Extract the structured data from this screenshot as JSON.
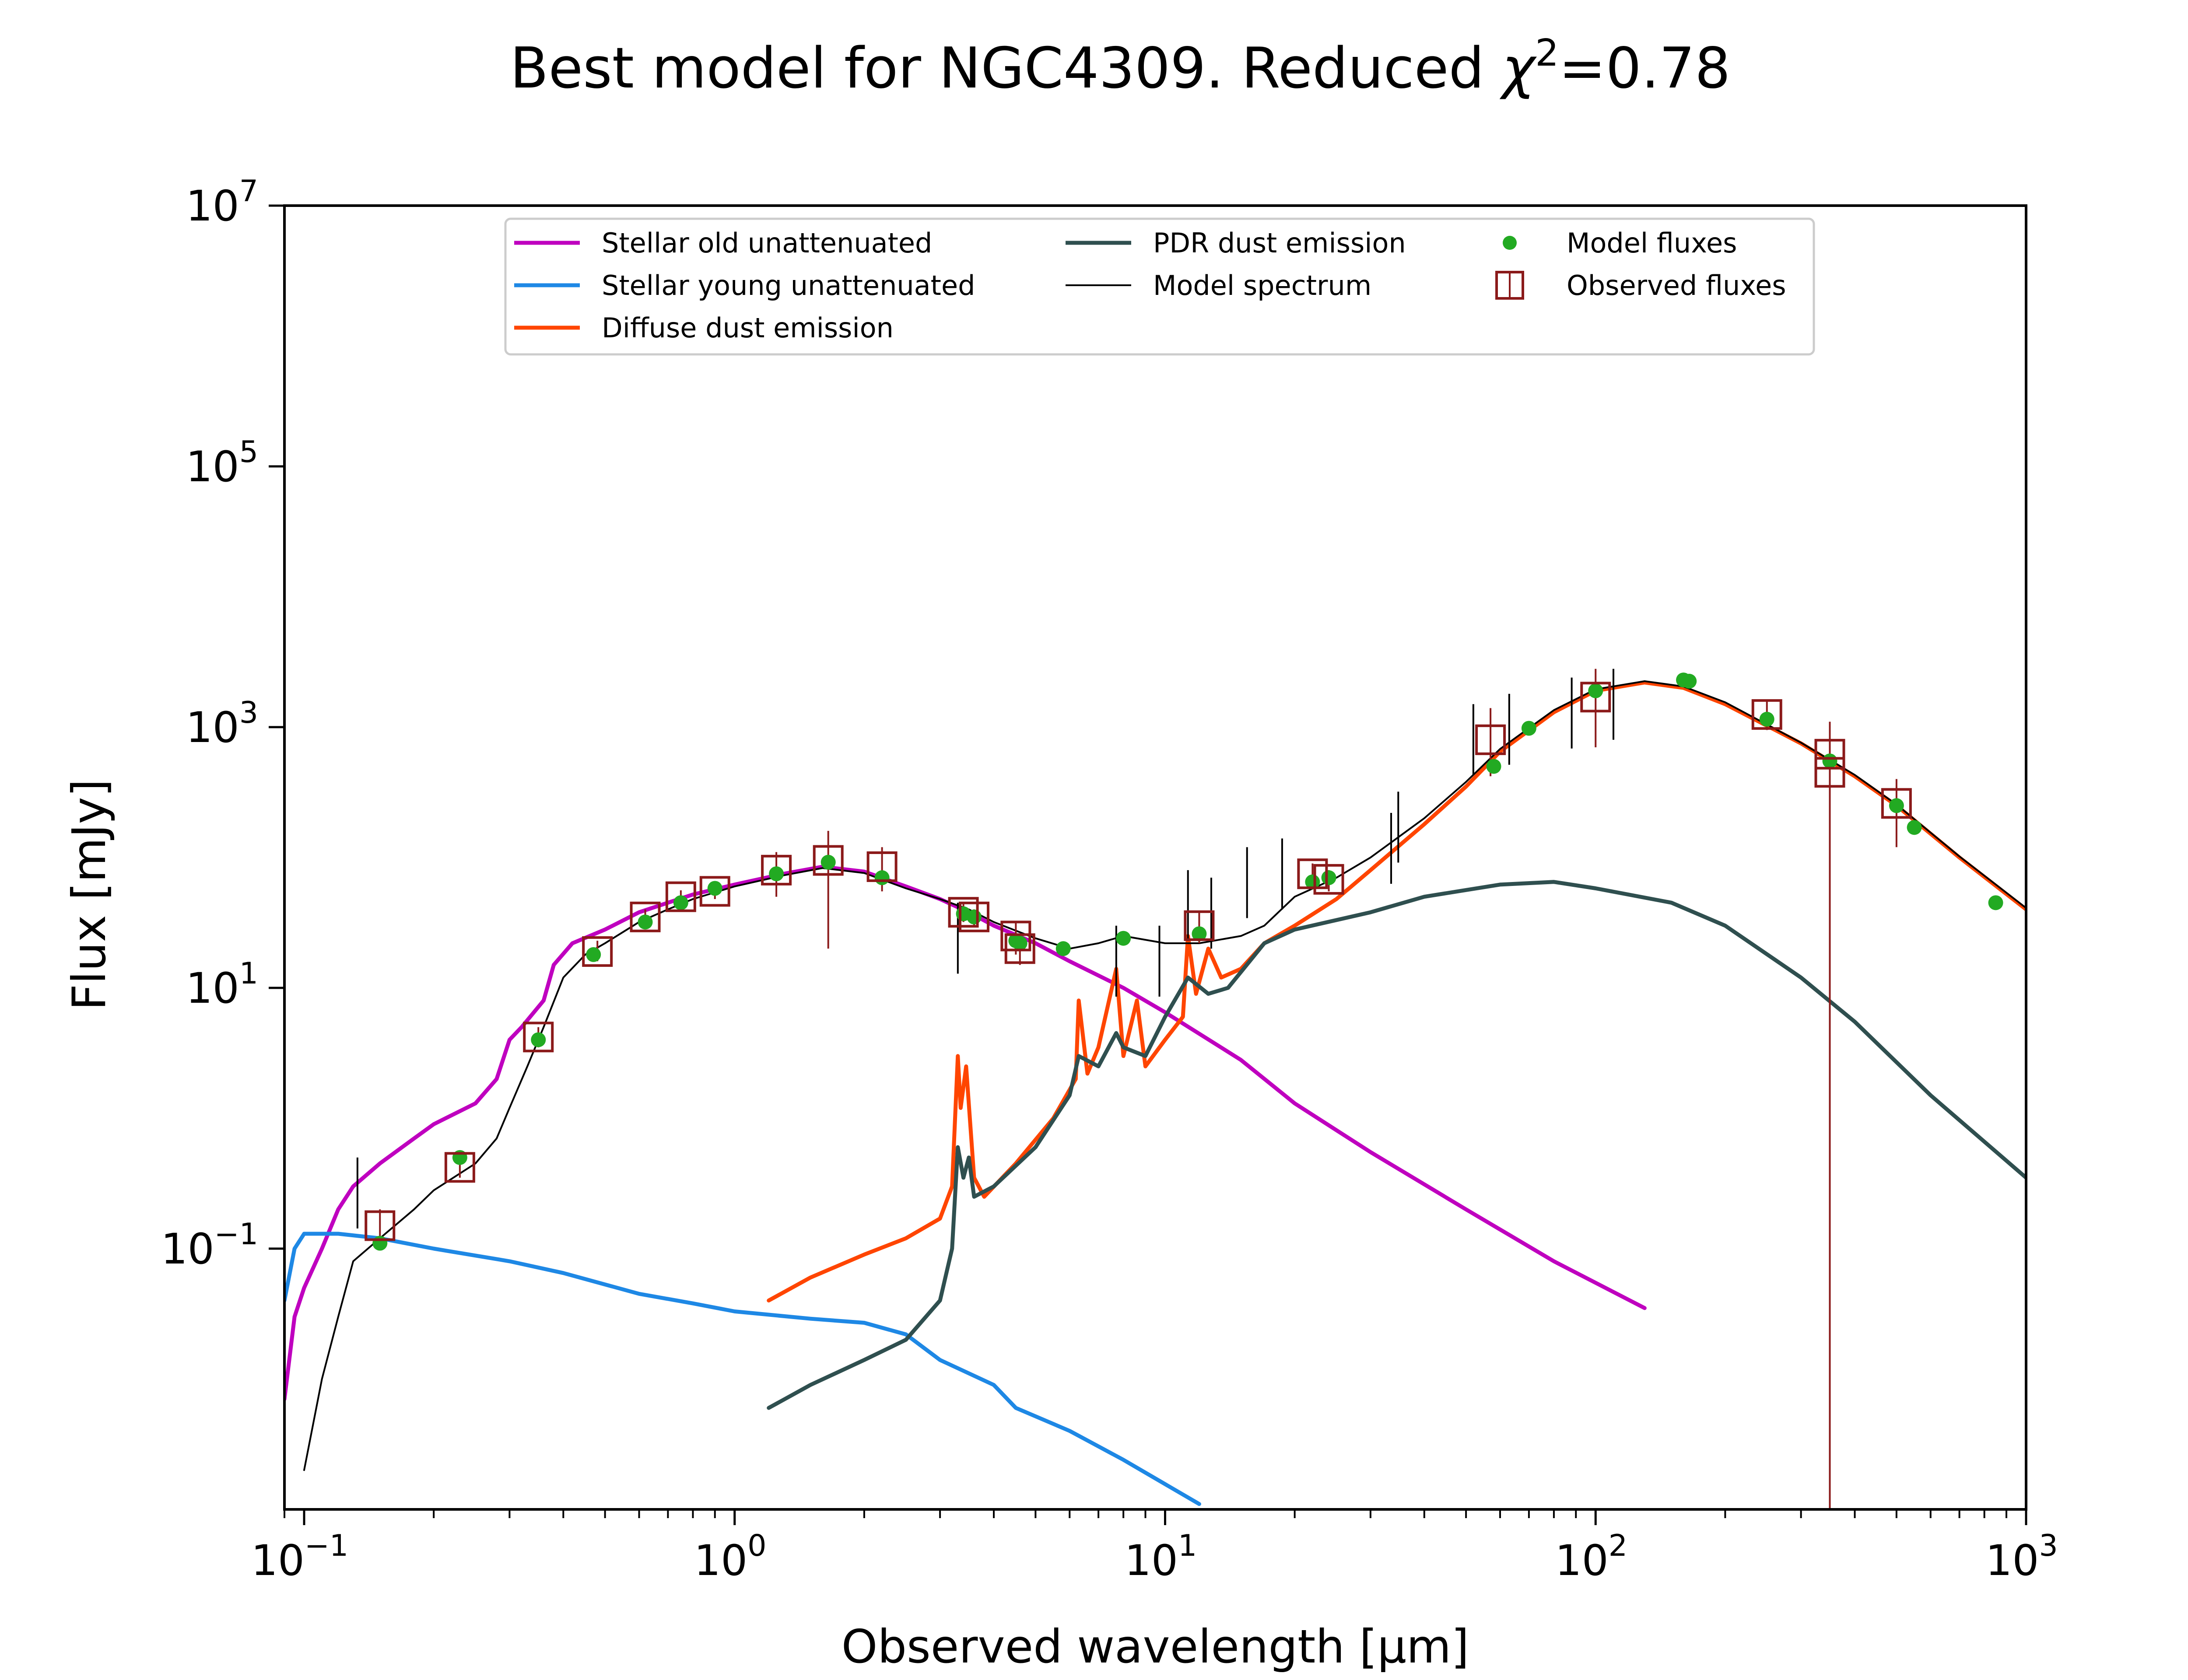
{
  "chart_data": {
    "type": "line",
    "title": "Best model for NGC4309. Reduced χ²=0.78",
    "title_parts": {
      "prefix": "Best model for NGC4309. Reduced ",
      "chi": "χ",
      "sup": "2",
      "suffix": "=0.78"
    },
    "xlabel": "Observed wavelength [μm]",
    "ylabel": "Flux [mJy]",
    "xscale": "log",
    "yscale": "log",
    "xlim": [
      0.09,
      1000
    ],
    "ylim": [
      0.001,
      10000000
    ],
    "grid": false,
    "legend_position": "top-center",
    "x_ticks": [
      {
        "base": "10",
        "exp": "−1",
        "value": 0.1
      },
      {
        "base": "10",
        "exp": "0",
        "value": 1
      },
      {
        "base": "10",
        "exp": "1",
        "value": 10
      },
      {
        "base": "10",
        "exp": "2",
        "value": 100
      },
      {
        "base": "10",
        "exp": "3",
        "value": 1000
      }
    ],
    "y_ticks": [
      {
        "base": "10",
        "exp": "−1",
        "value": 0.1
      },
      {
        "base": "10",
        "exp": "1",
        "value": 10
      },
      {
        "base": "10",
        "exp": "3",
        "value": 1000
      },
      {
        "base": "10",
        "exp": "5",
        "value": 100000
      },
      {
        "base": "10",
        "exp": "7",
        "value": 10000000
      }
    ],
    "series": [
      {
        "name": "Stellar old unattenuated",
        "color": "#bf00bf",
        "kind": "line",
        "points": [
          [
            0.09,
            0.007
          ],
          [
            0.095,
            0.03
          ],
          [
            0.1,
            0.05
          ],
          [
            0.11,
            0.1
          ],
          [
            0.12,
            0.2
          ],
          [
            0.13,
            0.3
          ],
          [
            0.15,
            0.45
          ],
          [
            0.18,
            0.7
          ],
          [
            0.2,
            0.9
          ],
          [
            0.25,
            1.3
          ],
          [
            0.28,
            2
          ],
          [
            0.3,
            4
          ],
          [
            0.32,
            5
          ],
          [
            0.36,
            8
          ],
          [
            0.38,
            15
          ],
          [
            0.42,
            22
          ],
          [
            0.5,
            28
          ],
          [
            0.6,
            38
          ],
          [
            0.7,
            45
          ],
          [
            0.8,
            52
          ],
          [
            1.0,
            62
          ],
          [
            1.3,
            75
          ],
          [
            1.6,
            85
          ],
          [
            2.0,
            78
          ],
          [
            2.5,
            60
          ],
          [
            3.0,
            48
          ],
          [
            3.5,
            38
          ],
          [
            4.0,
            30
          ],
          [
            5.0,
            22
          ],
          [
            6.0,
            16
          ],
          [
            8.0,
            10
          ],
          [
            10.0,
            6.5
          ],
          [
            15.0,
            2.8
          ],
          [
            20.0,
            1.3
          ],
          [
            30.0,
            0.55
          ],
          [
            50.0,
            0.2
          ],
          [
            80.0,
            0.08
          ],
          [
            130.0,
            0.035
          ]
        ]
      },
      {
        "name": "Stellar young unattenuated",
        "color": "#1e88e5",
        "kind": "line",
        "points": [
          [
            0.09,
            0.04
          ],
          [
            0.095,
            0.1
          ],
          [
            0.1,
            0.13
          ],
          [
            0.12,
            0.13
          ],
          [
            0.15,
            0.12
          ],
          [
            0.2,
            0.1
          ],
          [
            0.3,
            0.08
          ],
          [
            0.4,
            0.065
          ],
          [
            0.6,
            0.045
          ],
          [
            0.8,
            0.038
          ],
          [
            1.0,
            0.033
          ],
          [
            1.5,
            0.029
          ],
          [
            2.0,
            0.027
          ],
          [
            2.5,
            0.022
          ],
          [
            3.0,
            0.014
          ],
          [
            4.0,
            0.009
          ],
          [
            4.5,
            0.006
          ],
          [
            6.0,
            0.004
          ],
          [
            8.0,
            0.0024
          ],
          [
            12.0,
            0.0011
          ]
        ]
      },
      {
        "name": "Diffuse dust emission",
        "color": "#ff4500",
        "kind": "line",
        "points": [
          [
            1.2,
            0.04
          ],
          [
            1.5,
            0.06
          ],
          [
            2.0,
            0.09
          ],
          [
            2.5,
            0.12
          ],
          [
            3.0,
            0.17
          ],
          [
            3.2,
            0.3
          ],
          [
            3.3,
            3.0
          ],
          [
            3.35,
            1.2
          ],
          [
            3.45,
            2.5
          ],
          [
            3.6,
            0.35
          ],
          [
            3.8,
            0.25
          ],
          [
            4.5,
            0.45
          ],
          [
            5.5,
            1.0
          ],
          [
            6.2,
            2.0
          ],
          [
            6.3,
            8.0
          ],
          [
            6.6,
            2.2
          ],
          [
            7.0,
            3.5
          ],
          [
            7.7,
            14.0
          ],
          [
            8.0,
            3.0
          ],
          [
            8.6,
            8.0
          ],
          [
            9.0,
            2.5
          ],
          [
            10.0,
            4.0
          ],
          [
            11.0,
            6.0
          ],
          [
            11.3,
            25.0
          ],
          [
            11.8,
            9.0
          ],
          [
            12.6,
            20.0
          ],
          [
            13.5,
            12.0
          ],
          [
            15.0,
            14.0
          ],
          [
            17.0,
            22.0
          ],
          [
            20.0,
            30.0
          ],
          [
            25.0,
            48.0
          ],
          [
            30.0,
            80.0
          ],
          [
            40.0,
            180.0
          ],
          [
            50.0,
            350.0
          ],
          [
            60.0,
            650.0
          ],
          [
            80.0,
            1300.0
          ],
          [
            100.0,
            1900.0
          ],
          [
            130.0,
            2200.0
          ],
          [
            160.0,
            2000.0
          ],
          [
            200.0,
            1500.0
          ],
          [
            300.0,
            750.0
          ],
          [
            400.0,
            420.0
          ],
          [
            500.0,
            250.0
          ],
          [
            700.0,
            100.0
          ],
          [
            1000.0,
            40.0
          ]
        ]
      },
      {
        "name": "PDR dust emission",
        "color": "#2f4f4f",
        "kind": "line",
        "points": [
          [
            1.2,
            0.006
          ],
          [
            1.5,
            0.009
          ],
          [
            2.0,
            0.014
          ],
          [
            2.5,
            0.02
          ],
          [
            3.0,
            0.04
          ],
          [
            3.2,
            0.1
          ],
          [
            3.3,
            0.6
          ],
          [
            3.4,
            0.35
          ],
          [
            3.5,
            0.5
          ],
          [
            3.6,
            0.25
          ],
          [
            4.0,
            0.3
          ],
          [
            5.0,
            0.6
          ],
          [
            6.0,
            1.5
          ],
          [
            6.3,
            3.0
          ],
          [
            7.0,
            2.5
          ],
          [
            7.7,
            4.5
          ],
          [
            8.0,
            3.5
          ],
          [
            9.0,
            3.0
          ],
          [
            10.0,
            6.0
          ],
          [
            11.3,
            12.0
          ],
          [
            12.6,
            9.0
          ],
          [
            14.0,
            10.0
          ],
          [
            17.0,
            22.0
          ],
          [
            20.0,
            28.0
          ],
          [
            30.0,
            38.0
          ],
          [
            40.0,
            50.0
          ],
          [
            60.0,
            62.0
          ],
          [
            80.0,
            65.0
          ],
          [
            100.0,
            58.0
          ],
          [
            150.0,
            45.0
          ],
          [
            200.0,
            30.0
          ],
          [
            300.0,
            12.0
          ],
          [
            400.0,
            5.5
          ],
          [
            600.0,
            1.5
          ],
          [
            1000.0,
            0.35
          ]
        ]
      },
      {
        "name": "Model spectrum",
        "color": "#000000",
        "kind": "line",
        "points": [
          [
            0.1,
            0.002
          ],
          [
            0.11,
            0.01
          ],
          [
            0.12,
            0.03
          ],
          [
            0.13,
            0.08
          ],
          [
            0.15,
            0.12
          ],
          [
            0.18,
            0.2
          ],
          [
            0.2,
            0.28
          ],
          [
            0.25,
            0.45
          ],
          [
            0.28,
            0.7
          ],
          [
            0.3,
            1.2
          ],
          [
            0.33,
            2.5
          ],
          [
            0.36,
            5
          ],
          [
            0.4,
            12
          ],
          [
            0.45,
            18
          ],
          [
            0.5,
            22
          ],
          [
            0.6,
            32
          ],
          [
            0.7,
            40
          ],
          [
            0.8,
            48
          ],
          [
            1.0,
            60
          ],
          [
            1.3,
            73
          ],
          [
            1.6,
            83
          ],
          [
            2.0,
            76
          ],
          [
            2.5,
            58
          ],
          [
            3.0,
            48
          ],
          [
            3.5,
            40
          ],
          [
            4.0,
            32
          ],
          [
            5.0,
            24
          ],
          [
            6.0,
            20
          ],
          [
            7.0,
            22
          ],
          [
            8.0,
            25
          ],
          [
            10.0,
            22
          ],
          [
            12.0,
            22
          ],
          [
            15.0,
            25
          ],
          [
            17.0,
            30
          ],
          [
            20.0,
            50
          ],
          [
            25.0,
            70
          ],
          [
            30.0,
            100
          ],
          [
            40.0,
            200
          ],
          [
            50.0,
            380
          ],
          [
            60.0,
            680
          ],
          [
            80.0,
            1350
          ],
          [
            100.0,
            1950
          ],
          [
            130.0,
            2250
          ],
          [
            160.0,
            2050
          ],
          [
            200.0,
            1550
          ],
          [
            300.0,
            760
          ],
          [
            400.0,
            430
          ],
          [
            500.0,
            255
          ],
          [
            700.0,
            102
          ],
          [
            1000.0,
            41
          ]
        ]
      }
    ],
    "model_fluxes": {
      "name": "Model fluxes",
      "color": "#22aa22",
      "marker": "circle",
      "points": [
        [
          0.15,
          0.11
        ],
        [
          0.23,
          0.5
        ],
        [
          0.35,
          4.0
        ],
        [
          0.47,
          18
        ],
        [
          0.62,
          32
        ],
        [
          0.75,
          45
        ],
        [
          0.9,
          58
        ],
        [
          1.25,
          75
        ],
        [
          1.65,
          92
        ],
        [
          2.2,
          70
        ],
        [
          3.4,
          37
        ],
        [
          3.6,
          35
        ],
        [
          4.5,
          23
        ],
        [
          4.6,
          22
        ],
        [
          5.8,
          20
        ],
        [
          8.0,
          24
        ],
        [
          12.0,
          26
        ],
        [
          22.0,
          65
        ],
        [
          24.0,
          70
        ],
        [
          58.0,
          500
        ],
        [
          70.0,
          980
        ],
        [
          100.0,
          1900
        ],
        [
          160.0,
          2300
        ],
        [
          165.0,
          2250
        ],
        [
          250.0,
          1150
        ],
        [
          350.0,
          550
        ],
        [
          500.0,
          250
        ],
        [
          550.0,
          170
        ],
        [
          850.0,
          45
        ]
      ]
    },
    "observed_fluxes": {
      "name": "Observed fluxes",
      "color": "#8b1a1a",
      "marker": "square",
      "points": [
        {
          "x": 0.15,
          "y": 0.15,
          "lo": 0.11,
          "hi": 0.2
        },
        {
          "x": 0.23,
          "y": 0.42,
          "lo": 0.35,
          "hi": 0.5
        },
        {
          "x": 0.35,
          "y": 4.2,
          "lo": 3.5,
          "hi": 5.0
        },
        {
          "x": 0.48,
          "y": 19,
          "lo": 16,
          "hi": 23
        },
        {
          "x": 0.62,
          "y": 35,
          "lo": 30,
          "hi": 40
        },
        {
          "x": 0.75,
          "y": 50,
          "lo": 44,
          "hi": 56
        },
        {
          "x": 0.9,
          "y": 55,
          "lo": 48,
          "hi": 62
        },
        {
          "x": 1.25,
          "y": 80,
          "lo": 50,
          "hi": 110
        },
        {
          "x": 1.65,
          "y": 95,
          "lo": 20,
          "hi": 160
        },
        {
          "x": 2.2,
          "y": 85,
          "lo": 55,
          "hi": 120
        },
        {
          "x": 3.4,
          "y": 38,
          "lo": 32,
          "hi": 44
        },
        {
          "x": 3.6,
          "y": 35,
          "lo": 30,
          "hi": 40
        },
        {
          "x": 4.5,
          "y": 25,
          "lo": 18,
          "hi": 32
        },
        {
          "x": 4.6,
          "y": 20,
          "lo": 15,
          "hi": 26
        },
        {
          "x": 12.0,
          "y": 30,
          "lo": 22,
          "hi": 38
        },
        {
          "x": 22.0,
          "y": 75,
          "lo": 60,
          "hi": 90
        },
        {
          "x": 24.0,
          "y": 68,
          "lo": 55,
          "hi": 80
        },
        {
          "x": 57.0,
          "y": 800,
          "lo": 420,
          "hi": 1400
        },
        {
          "x": 100.0,
          "y": 1700,
          "lo": 700,
          "hi": 2800
        },
        {
          "x": 250.0,
          "y": 1250,
          "lo": 950,
          "hi": 1600
        },
        {
          "x": 350.0,
          "y": 620,
          "lo": 0.001,
          "hi": 1100
        },
        {
          "x": 350.0,
          "y": 450,
          "lo": 0.001,
          "hi": 800
        },
        {
          "x": 500.0,
          "y": 260,
          "lo": 120,
          "hi": 400
        }
      ]
    },
    "spectrum_spikes": [
      [
        0.133,
        0.5
      ],
      [
        3.3,
        45
      ],
      [
        7.7,
        30
      ],
      [
        9.7,
        30
      ],
      [
        11.3,
        80
      ],
      [
        12.8,
        70
      ],
      [
        15.5,
        120
      ],
      [
        18.7,
        140
      ],
      [
        33.5,
        220
      ],
      [
        34.8,
        320
      ],
      [
        52,
        1500
      ],
      [
        63,
        1800
      ],
      [
        88,
        2400
      ],
      [
        110,
        2800
      ]
    ],
    "legend": [
      {
        "label": "Stellar old unattenuated",
        "color": "#bf00bf",
        "marker": "line"
      },
      {
        "label": "Stellar young unattenuated",
        "color": "#1e88e5",
        "marker": "line"
      },
      {
        "label": "Diffuse dust emission",
        "color": "#ff4500",
        "marker": "line"
      },
      {
        "label": "PDR dust emission",
        "color": "#2f4f4f",
        "marker": "line"
      },
      {
        "label": "Model spectrum",
        "color": "#000000",
        "marker": "thinline"
      },
      {
        "label": "Model fluxes",
        "color": "#22aa22",
        "marker": "dot"
      },
      {
        "label": "Observed fluxes",
        "color": "#8b1a1a",
        "marker": "square"
      }
    ]
  }
}
